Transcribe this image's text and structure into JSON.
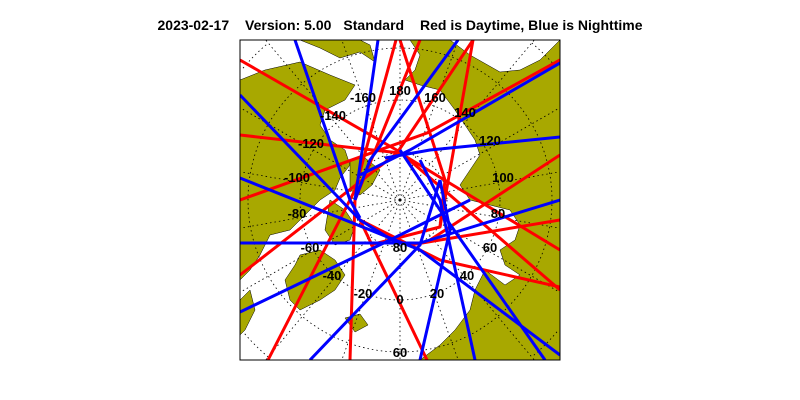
{
  "header": {
    "date": "2023-02-17",
    "version": "Version: 5.00",
    "mode": "Standard",
    "legend_text": "Red is Daytime, Blue is Nighttime"
  },
  "map": {
    "projection": "north polar stereographic",
    "longitude_labels": [
      "180",
      "160",
      "140",
      "120",
      "100",
      "80",
      "60",
      "40",
      "20",
      "0",
      "-20",
      "-40",
      "-60",
      "-80",
      "-100",
      "-120",
      "-140",
      "-160"
    ],
    "latitude_labels": [
      "80",
      "60"
    ],
    "colors": {
      "land": "#a8a800",
      "day_track": "#ff0000",
      "night_track": "#0000ff",
      "ocean": "#ffffff"
    }
  }
}
